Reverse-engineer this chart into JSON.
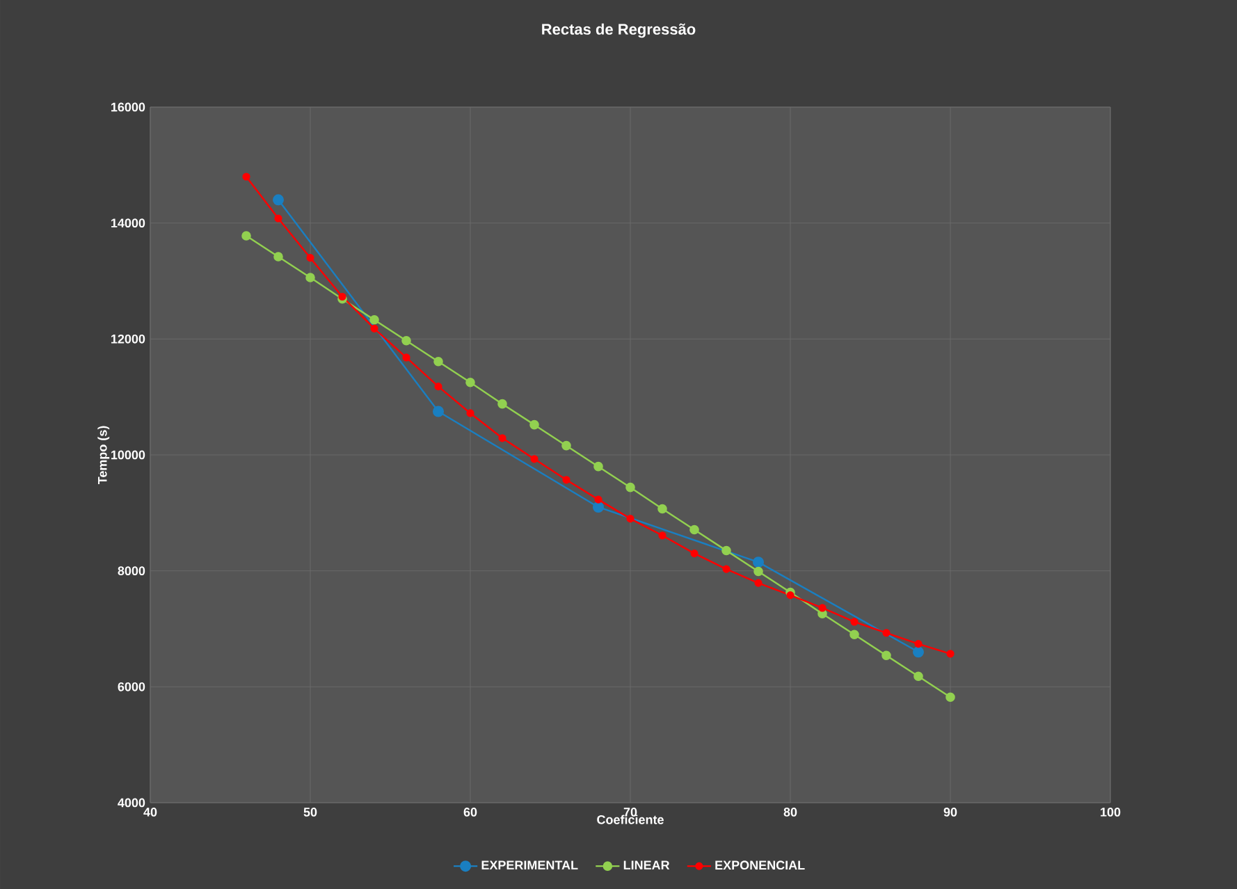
{
  "chart_data": {
    "type": "line",
    "title": "Rectas de Regressão",
    "xlabel": "Coeficiente",
    "ylabel": "Tempo (s)",
    "xlim": [
      40,
      100
    ],
    "xticks": [
      40,
      50,
      60,
      70,
      80,
      90,
      100
    ],
    "ylim": [
      4000,
      16000
    ],
    "yticks": [
      4000,
      6000,
      8000,
      10000,
      12000,
      14000,
      16000
    ],
    "grid": true,
    "legend": "bottom",
    "marker": "circle",
    "line_style": "solid",
    "series": [
      {
        "name": "EXPERIMENTAL",
        "color": "#1a7fc1",
        "x": [
          48,
          58,
          68,
          78,
          88
        ],
        "values": [
          14400,
          10750,
          9100,
          8150,
          6600
        ]
      },
      {
        "name": "LINEAR",
        "color": "#92d050",
        "x": [
          46,
          48,
          50,
          52,
          54,
          56,
          58,
          60,
          62,
          64,
          66,
          68,
          70,
          72,
          74,
          76,
          78,
          80,
          82,
          84,
          86,
          88,
          90
        ],
        "values": [
          13780,
          13420,
          13060,
          12690,
          12330,
          11970,
          11610,
          11250,
          10880,
          10520,
          10160,
          9800,
          9440,
          9070,
          8710,
          8350,
          7990,
          7630,
          7260,
          6900,
          6540,
          6180,
          5820
        ]
      },
      {
        "name": "EXPONENCIAL",
        "color": "#ff0000",
        "x": [
          46,
          48,
          50,
          52,
          54,
          56,
          58,
          60,
          62,
          64,
          66,
          68,
          70,
          72,
          74,
          76,
          78,
          80,
          82,
          84,
          86,
          88,
          90
        ],
        "values": [
          14800,
          14080,
          13400,
          12730,
          12180,
          11680,
          11180,
          10720,
          10290,
          9930,
          9570,
          9230,
          8900,
          8610,
          8300,
          8030,
          7790,
          7580,
          7360,
          7120,
          6930,
          6740,
          6570
        ]
      }
    ]
  }
}
